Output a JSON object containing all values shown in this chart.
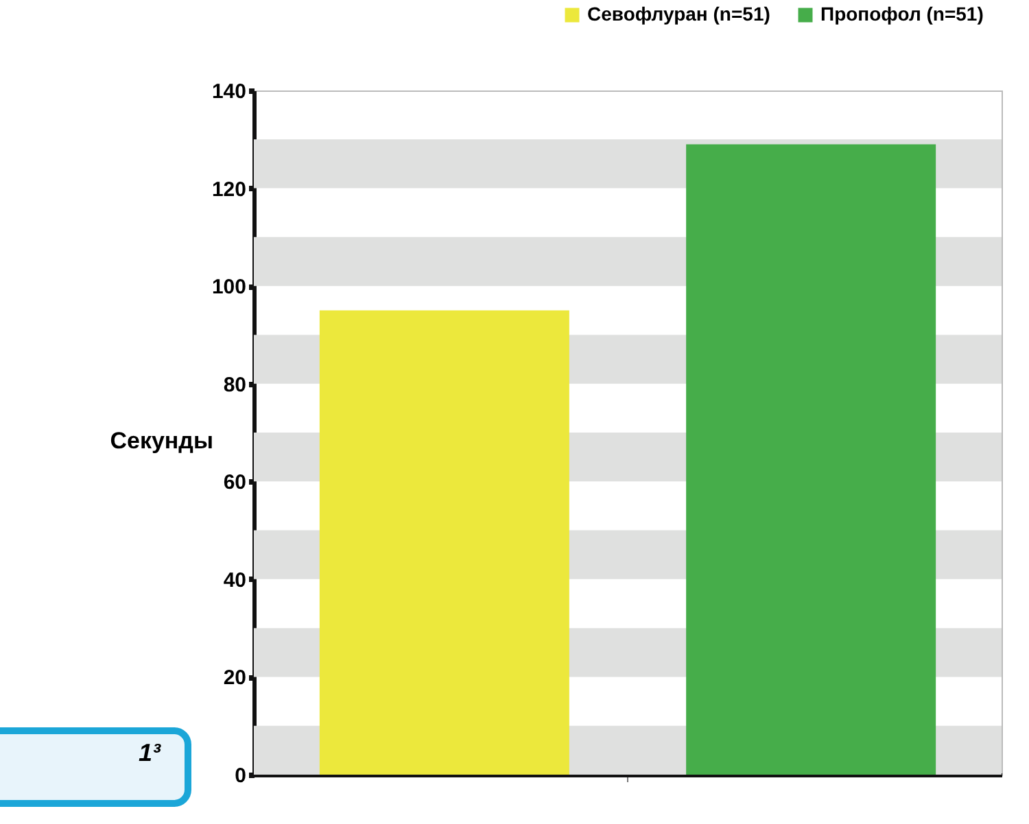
{
  "chart_data": {
    "type": "bar",
    "ylabel": "Секунды",
    "categories": [
      null
    ],
    "series": [
      {
        "name": "Севофлуран (n=51)",
        "color": "#ece83c",
        "values": [
          95
        ]
      },
      {
        "name": "Пропофол (n=51)",
        "color": "#46ad4a",
        "values": [
          129
        ]
      }
    ],
    "ylim": [
      0,
      140
    ],
    "yticks": [
      0,
      20,
      40,
      60,
      80,
      100,
      120,
      140
    ],
    "legend": "top right",
    "bands": [
      {
        "axis": "y",
        "from": 0,
        "to": 10,
        "color": "#dfe0df"
      },
      {
        "axis": "y",
        "from": 20,
        "to": 30,
        "color": "#dfe0df"
      },
      {
        "axis": "y",
        "from": 40,
        "to": 50,
        "color": "#dfe0df"
      },
      {
        "axis": "y",
        "from": 60,
        "to": 70,
        "color": "#dfe0df"
      },
      {
        "axis": "y",
        "from": 80,
        "to": 90,
        "color": "#dfe0df"
      },
      {
        "axis": "y",
        "from": 100,
        "to": 110,
        "color": "#dfe0df"
      },
      {
        "axis": "y",
        "from": 120,
        "to": 130,
        "color": "#dfe0df"
      }
    ],
    "annotations": [
      "1³"
    ]
  }
}
